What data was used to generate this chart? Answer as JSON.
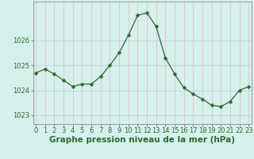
{
  "x": [
    0,
    1,
    2,
    3,
    4,
    5,
    6,
    7,
    8,
    9,
    10,
    11,
    12,
    13,
    14,
    15,
    16,
    17,
    18,
    19,
    20,
    21,
    22,
    23
  ],
  "y": [
    1024.7,
    1024.85,
    1024.65,
    1024.4,
    1024.15,
    1024.25,
    1024.25,
    1024.55,
    1025.0,
    1025.5,
    1026.2,
    1027.0,
    1027.1,
    1026.55,
    1025.3,
    1024.65,
    1024.1,
    1023.85,
    1023.65,
    1023.4,
    1023.35,
    1023.55,
    1024.0,
    1024.15
  ],
  "line_color": "#2d6a2d",
  "marker": "D",
  "marker_size": 2.5,
  "bg_color": "#d6f0ee",
  "vgrid_color": "#e8b8b8",
  "hgrid_color": "#aad4d4",
  "axis_color": "#888888",
  "xlabel": "Graphe pression niveau de la mer (hPa)",
  "xlabel_fontsize": 7.5,
  "xlabel_color": "#2d6a2d",
  "tick_label_color": "#2d6a2d",
  "tick_label_fontsize": 6,
  "yticks": [
    1023,
    1024,
    1025,
    1026
  ],
  "ylim": [
    1022.65,
    1027.55
  ],
  "xlim": [
    -0.3,
    23.3
  ],
  "xtick_labels": [
    "0",
    "1",
    "2",
    "3",
    "4",
    "5",
    "6",
    "7",
    "8",
    "9",
    "10",
    "11",
    "12",
    "13",
    "14",
    "15",
    "16",
    "17",
    "18",
    "19",
    "20",
    "21",
    "22",
    "23"
  ]
}
